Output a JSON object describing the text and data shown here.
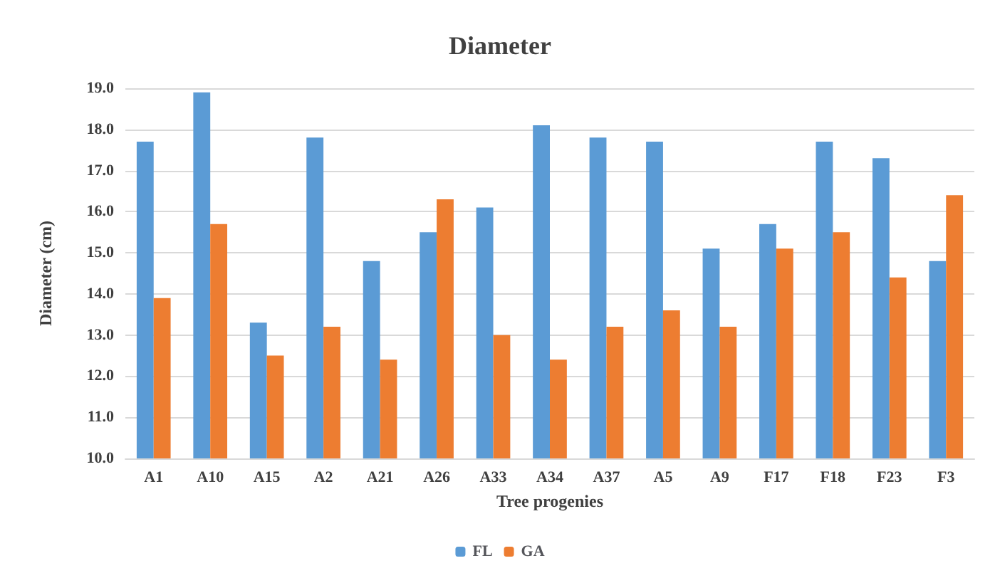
{
  "chart_data": {
    "type": "bar",
    "title": "Diameter",
    "xlabel": "Tree progenies",
    "ylabel": "Diameter (cm)",
    "categories": [
      "A1",
      "A10",
      "A15",
      "A2",
      "A21",
      "A26",
      "A33",
      "A34",
      "A37",
      "A5",
      "A9",
      "F17",
      "F18",
      "F23",
      "F3"
    ],
    "series": [
      {
        "name": "FL",
        "color": "#5b9bd5",
        "values": [
          17.7,
          18.9,
          13.3,
          17.8,
          14.8,
          15.5,
          16.1,
          18.1,
          17.8,
          17.7,
          15.1,
          15.7,
          17.7,
          17.3,
          14.8
        ]
      },
      {
        "name": "GA",
        "color": "#ed7d31",
        "values": [
          13.9,
          15.7,
          12.5,
          13.2,
          12.4,
          16.3,
          13.0,
          12.4,
          13.2,
          13.6,
          13.2,
          15.1,
          15.5,
          14.4,
          16.4
        ]
      }
    ],
    "ylim": [
      10,
      19
    ],
    "yticks": [
      {
        "value": 10,
        "label": "10.0"
      },
      {
        "value": 11,
        "label": "11.0"
      },
      {
        "value": 12,
        "label": "12.0"
      },
      {
        "value": 13,
        "label": "13.0"
      },
      {
        "value": 14,
        "label": "14.0"
      },
      {
        "value": 15,
        "label": "15.0"
      },
      {
        "value": 16,
        "label": "16.0"
      },
      {
        "value": 17,
        "label": "17.0"
      },
      {
        "value": 18,
        "label": "18.0"
      },
      {
        "value": 19,
        "label": "19.0"
      }
    ],
    "grid": "y",
    "legend": "bottom"
  }
}
